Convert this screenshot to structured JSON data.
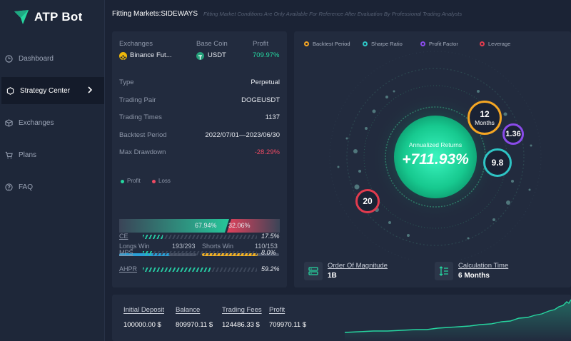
{
  "app": {
    "name": "ATP Bot"
  },
  "sidebar": {
    "items": [
      {
        "label": "Dashboard",
        "icon": "clock-icon"
      },
      {
        "label": "Strategy Center",
        "icon": "hexagon-icon",
        "active": true
      },
      {
        "label": "Exchanges",
        "icon": "cube-icon"
      },
      {
        "label": "Plans",
        "icon": "cart-icon"
      },
      {
        "label": "FAQ",
        "icon": "help-circle-icon"
      }
    ]
  },
  "header": {
    "title": "Fitting Markets:SIDEWAYS",
    "note": "Fitting Market Conditions Are Only Available For Reference After Evaluation By Professional Trading Analysts"
  },
  "summary": {
    "exchanges_label": "Exchanges",
    "base_coin_label": "Base Coin",
    "profit_label": "Profit",
    "exchange": "Binance Fut...",
    "base_coin": "USDT",
    "profit": "709.97%"
  },
  "details": [
    {
      "label": "Type",
      "value": "Perpetual"
    },
    {
      "label": "Trading Pair",
      "value": "DOGEUSDT"
    },
    {
      "label": "Trading Times",
      "value": "1137"
    },
    {
      "label": "Backtest Period",
      "value": "2022/07/01—2023/06/30"
    },
    {
      "label": "Max Drawdown",
      "value": "-28.29%"
    }
  ],
  "profit_loss": {
    "profit_label": "Profit",
    "loss_label": "Loss",
    "profit_pct": "67.94%",
    "loss_pct": "32.06%",
    "profit_fraction": 0.6794
  },
  "wins": {
    "longs_label": "Longs Win",
    "longs_value": "193/293",
    "longs_fraction": 0.6587,
    "shorts_label": "Shorts Win",
    "shorts_value": "110/153",
    "shorts_fraction": 0.719
  },
  "metrics": [
    {
      "label": "CE",
      "value": "17.5%",
      "fraction": 0.175
    },
    {
      "label": "MPS",
      "value": "8.0%",
      "fraction": 0.08
    },
    {
      "label": "AHPR",
      "value": "59.2%",
      "fraction": 0.592
    }
  ],
  "legend": [
    {
      "label": "Backtest Period",
      "color": "#f5a623"
    },
    {
      "label": "Sharpe Ratio",
      "color": "#2ec4c4"
    },
    {
      "label": "Profit Factor",
      "color": "#8a4bea"
    },
    {
      "label": "Leverage",
      "color": "#e23b4e"
    }
  ],
  "radar": {
    "center_label": "Annualized Returns",
    "center_value": "+711.93%",
    "backtest_period_value": "12",
    "backtest_period_unit": "Months",
    "profit_factor": "1.36",
    "sharpe_ratio": "9.8",
    "leverage": "20"
  },
  "stats": {
    "magnitude_label": "Order Of Magnitude",
    "magnitude_value": "1B",
    "calc_label": "Calculation Time",
    "calc_value": "6 Months"
  },
  "bottom": {
    "initial_deposit_label": "Initial Deposit",
    "initial_deposit": "100000.00 $",
    "balance_label": "Balance",
    "balance": "809970.11 $",
    "fees_label": "Trading Fees",
    "fees": "124486.33 $",
    "profit_label": "Profit",
    "profit": "709970.11 $"
  },
  "colors": {
    "accent": "#26d6a0",
    "loss": "#ef4a63",
    "bg": "#1b2335",
    "panel": "#222b3e"
  }
}
